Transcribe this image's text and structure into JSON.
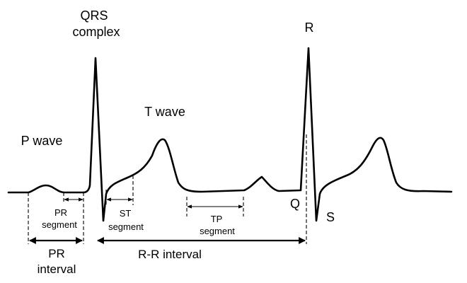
{
  "labels": {
    "qrs_line1": "QRS",
    "qrs_line2": "complex",
    "r": "R",
    "t_wave": "T wave",
    "p_wave": "P wave",
    "q": "Q",
    "s": "S",
    "pr_segment_line1": "PR",
    "pr_segment_line2": "segment",
    "st_segment_line1": "ST",
    "st_segment_line2": "segment",
    "tp_segment_line1": "TP",
    "tp_segment_line2": "segment",
    "pr_interval_line1": "PR",
    "pr_interval_line2": "interval",
    "rr_interval": "R-R interval"
  },
  "colors": {
    "stroke": "#000000",
    "background": "#ffffff"
  }
}
